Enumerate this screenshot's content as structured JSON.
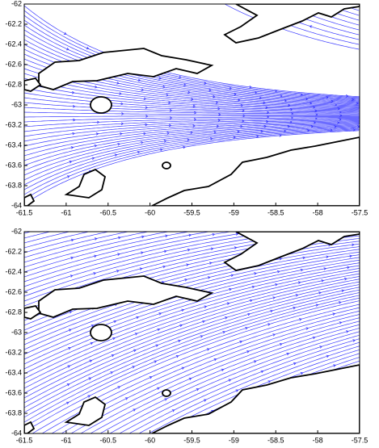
{
  "chart_data": [
    {
      "type": "streamline",
      "color": "#3a3aff",
      "xlim": [
        -61.5,
        -57.5
      ],
      "ylim": [
        -64,
        -62
      ],
      "xticks": [
        -61.5,
        -61,
        -60.5,
        -60,
        -59.5,
        -59,
        -58.5,
        -58,
        -57.5
      ],
      "yticks": [
        -62,
        -62.2,
        -62.4,
        -62.6,
        -62.8,
        -63,
        -63.2,
        -63.4,
        -63.6,
        -63.8,
        -64
      ]
    },
    {
      "type": "streamline",
      "color": "#3a3aff",
      "xlim": [
        -61.5,
        -57.5
      ],
      "ylim": [
        -64,
        -62
      ],
      "xticks": [
        -61.5,
        -61,
        -60.5,
        -60,
        -59.5,
        -59,
        -58.5,
        -58,
        -57.5
      ],
      "yticks": [
        -62,
        -62.2,
        -62.4,
        -62.6,
        -62.8,
        -63,
        -63.2,
        -63.4,
        -63.6,
        -63.8,
        -64
      ]
    }
  ]
}
